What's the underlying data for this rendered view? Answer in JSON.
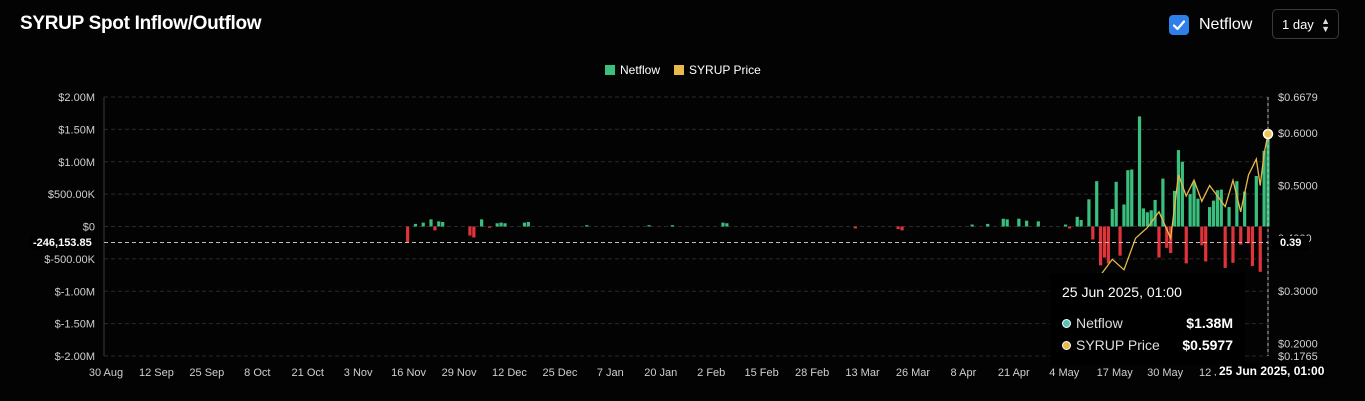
{
  "header": {
    "title": "SYRUP Spot Inflow/Outflow",
    "netflow_toggle_label": "Netflow",
    "interval_value": "1 day"
  },
  "legend": [
    {
      "label": "Netflow",
      "color": "#3bbf7f"
    },
    {
      "label": "SYRUP Price",
      "color": "#e9b949"
    }
  ],
  "crosshair": {
    "y_value_label": "-246,153.85",
    "right_value_label": "0.39",
    "x_label": "25 Jun 2025, 01:00"
  },
  "tooltip": {
    "date": "25 Jun 2025, 01:00",
    "rows": [
      {
        "label": "Netflow",
        "value": "$1.38M",
        "color": "#57c3b5"
      },
      {
        "label": "SYRUP Price",
        "value": "$0.5977",
        "color": "#e9b949"
      }
    ]
  },
  "chart_data": {
    "type": "bar",
    "x_ticks": [
      "30 Aug",
      "12 Sep",
      "25 Sep",
      "8 Oct",
      "21 Oct",
      "3 Nov",
      "16 Nov",
      "29 Nov",
      "12 Dec",
      "25 Dec",
      "7 Jan",
      "20 Jan",
      "2 Feb",
      "15 Feb",
      "28 Feb",
      "13 Mar",
      "26 Mar",
      "8 Apr",
      "21 Apr",
      "4 May",
      "17 May",
      "30 May",
      "12 Jun",
      "25 Jun 2025, 01:00"
    ],
    "y_left_ticks": [
      "$2.00M",
      "$1.50M",
      "$1.00M",
      "$500.00K",
      "$0",
      "$-500.00K",
      "$-1.00M",
      "$-1.50M",
      "$-2.00M"
    ],
    "y_left_range": [
      -2000000,
      2000000
    ],
    "y_right_ticks": [
      "$0.6679",
      "$0.6000",
      "$0.5000",
      "0.4000",
      "$0.3000",
      "$0.2000",
      "$0.1765"
    ],
    "y_right_range": [
      0.1765,
      0.6679
    ],
    "colors": {
      "inflow": "#3bbf7f",
      "outflow": "#e0333a",
      "price": "#e9b949"
    },
    "series": [
      {
        "name": "Netflow",
        "points": [
          [
            "16 Nov",
            -240000
          ],
          [
            "18 Nov",
            40000
          ],
          [
            "20 Nov",
            60000
          ],
          [
            "22 Nov",
            110000
          ],
          [
            "23 Nov",
            -60000
          ],
          [
            "24 Nov",
            80000
          ],
          [
            "25 Nov",
            70000
          ],
          [
            "2 Dec",
            -140000
          ],
          [
            "3 Dec",
            -170000
          ],
          [
            "5 Dec",
            110000
          ],
          [
            "7 Dec",
            -20000
          ],
          [
            "9 Dec",
            50000
          ],
          [
            "10 Dec",
            60000
          ],
          [
            "11 Dec",
            50000
          ],
          [
            "16 Dec",
            60000
          ],
          [
            "17 Dec",
            70000
          ],
          [
            "1 Jan",
            20000
          ],
          [
            "17 Jan",
            20000
          ],
          [
            "23 Jan",
            20000
          ],
          [
            "5 Feb",
            60000
          ],
          [
            "6 Feb",
            50000
          ],
          [
            "11 Mar",
            -30000
          ],
          [
            "22 Mar",
            -40000
          ],
          [
            "23 Mar",
            -60000
          ],
          [
            "10 Apr",
            30000
          ],
          [
            "14 Apr",
            40000
          ],
          [
            "18 Apr",
            120000
          ],
          [
            "19 Apr",
            110000
          ],
          [
            "22 Apr",
            120000
          ],
          [
            "24 Apr",
            90000
          ],
          [
            "27 Apr",
            80000
          ],
          [
            "4 May",
            30000
          ],
          [
            "5 May",
            -30000
          ],
          [
            "7 May",
            150000
          ],
          [
            "8 May",
            100000
          ],
          [
            "10 May",
            420000
          ],
          [
            "11 May",
            -200000
          ],
          [
            "12 May",
            700000
          ],
          [
            "13 May",
            -600000
          ],
          [
            "14 May",
            -480000
          ],
          [
            "15 May",
            -570000
          ],
          [
            "16 May",
            270000
          ],
          [
            "17 May",
            690000
          ],
          [
            "18 May",
            -450000
          ],
          [
            "19 May",
            340000
          ],
          [
            "20 May",
            870000
          ],
          [
            "21 May",
            880000
          ],
          [
            "22 Nov",
            0
          ],
          [
            "23 May",
            1700000
          ],
          [
            "24 May",
            280000
          ],
          [
            "25 May",
            220000
          ],
          [
            "26 May",
            250000
          ],
          [
            "27 May",
            410000
          ],
          [
            "28 May",
            -480000
          ],
          [
            "29 May",
            740000
          ],
          [
            "30 May",
            -330000
          ],
          [
            "31 May",
            -410000
          ],
          [
            "1 Jun",
            550000
          ],
          [
            "2 Jun",
            1180000
          ],
          [
            "3 Jun",
            1000000
          ],
          [
            "4 Jun",
            -570000
          ],
          [
            "5 Jun",
            500000
          ],
          [
            "6 Jun",
            690000
          ],
          [
            "7 Jun",
            430000
          ],
          [
            "8 Jun",
            -290000
          ],
          [
            "9 Jun",
            -540000
          ],
          [
            "10 Jun",
            300000
          ],
          [
            "11 Jun",
            400000
          ],
          [
            "12 Jun",
            560000
          ],
          [
            "13 Jun",
            570000
          ],
          [
            "14 Jun",
            -640000
          ],
          [
            "15 Jun",
            300000
          ],
          [
            "16 Jun",
            -560000
          ],
          [
            "17 Jun",
            700000
          ],
          [
            "18 Jun",
            -280000
          ],
          [
            "19 Jun",
            540000
          ],
          [
            "20 Jun",
            -260000
          ],
          [
            "21 Jun",
            -610000
          ],
          [
            "22 Jun",
            780000
          ],
          [
            "23 Jun",
            -700000
          ],
          [
            "24 Jun",
            1170000
          ],
          [
            "25 Jun",
            1380000
          ]
        ]
      },
      {
        "name": "SYRUP Price",
        "points": [
          [
            "10 May",
            0.31
          ],
          [
            "13 May",
            0.33
          ],
          [
            "16 May",
            0.36
          ],
          [
            "19 May",
            0.34
          ],
          [
            "22 May",
            0.4
          ],
          [
            "25 May",
            0.42
          ],
          [
            "28 May",
            0.45
          ],
          [
            "31 May",
            0.4
          ],
          [
            "2 Jun",
            0.52
          ],
          [
            "4 Jun",
            0.48
          ],
          [
            "6 Jun",
            0.51
          ],
          [
            "8 Jun",
            0.47
          ],
          [
            "10 Jun",
            0.5
          ],
          [
            "12 Jun",
            0.48
          ],
          [
            "14 Jun",
            0.46
          ],
          [
            "16 Jun",
            0.51
          ],
          [
            "18 Jun",
            0.45
          ],
          [
            "20 Jun",
            0.52
          ],
          [
            "22 Jun",
            0.55
          ],
          [
            "23 Jun",
            0.5
          ],
          [
            "24 Jun",
            0.56
          ],
          [
            "25 Jun",
            0.5977
          ]
        ]
      }
    ]
  }
}
